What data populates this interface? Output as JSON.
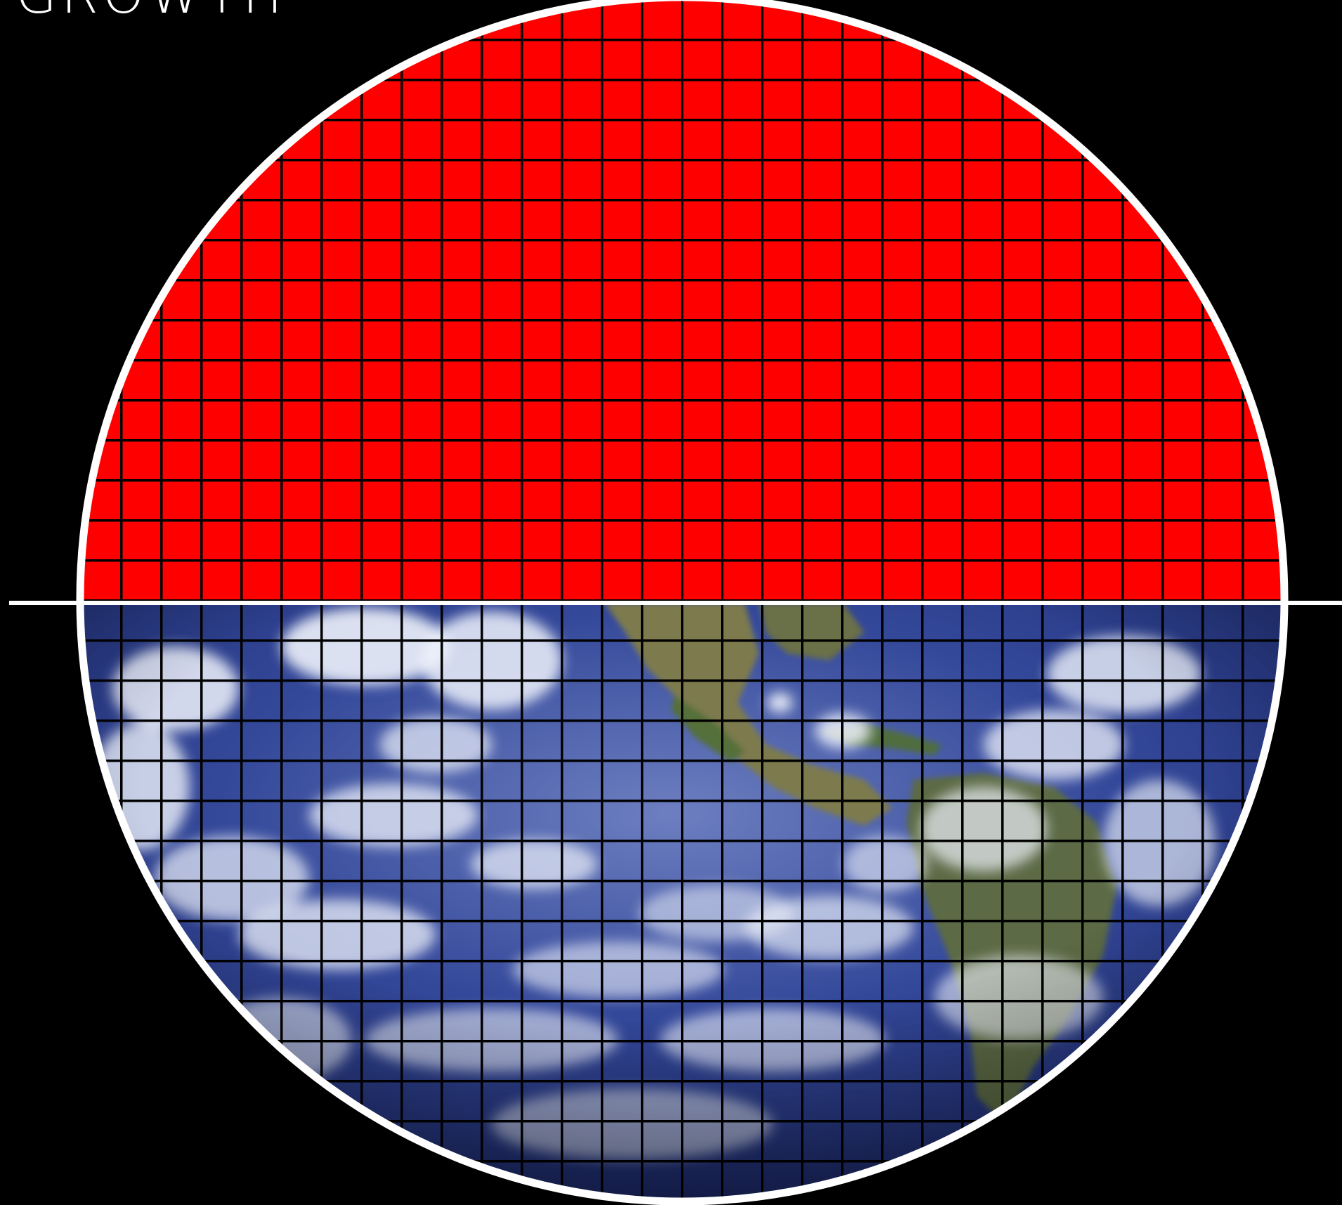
{
  "title": "GROWTH",
  "colors": {
    "background": "#000000",
    "upper_fill": "#ff0000",
    "grid_lines": "#000000",
    "outline": "#ffffff",
    "ocean": "#2e4a96",
    "land": "#6f7f4a",
    "clouds": "#e8eef8"
  },
  "icons": {
    "lower_half": "earth-satellite-image"
  }
}
